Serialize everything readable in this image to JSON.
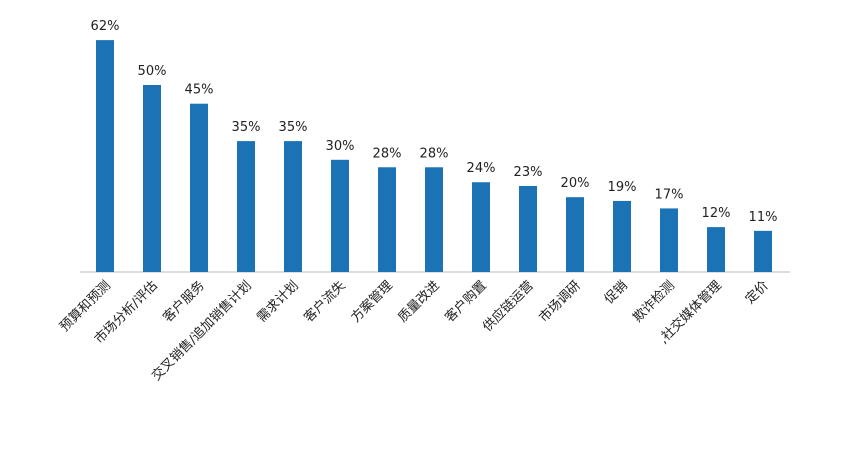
{
  "chart_data": {
    "type": "bar",
    "categories": [
      "预算和预测",
      "市场分析/评估",
      "客户服务",
      "交叉销售/追加销售计划",
      "需求计划",
      "客户流失",
      "方案管理",
      "质量改进",
      "客户购置",
      "供应链运营",
      "市场调研",
      "促销",
      "欺诈检测",
      ",社交媒体管理",
      "定价"
    ],
    "values": [
      62,
      50,
      45,
      35,
      35,
      30,
      28,
      28,
      24,
      23,
      20,
      19,
      17,
      12,
      11
    ],
    "value_labels": [
      "62%",
      "50%",
      "45%",
      "35%",
      "35%",
      "30%",
      "28%",
      "28%",
      "24%",
      "23%",
      "20%",
      "19%",
      "17%",
      "12%",
      "11%"
    ],
    "color": "#1b72b5"
  }
}
